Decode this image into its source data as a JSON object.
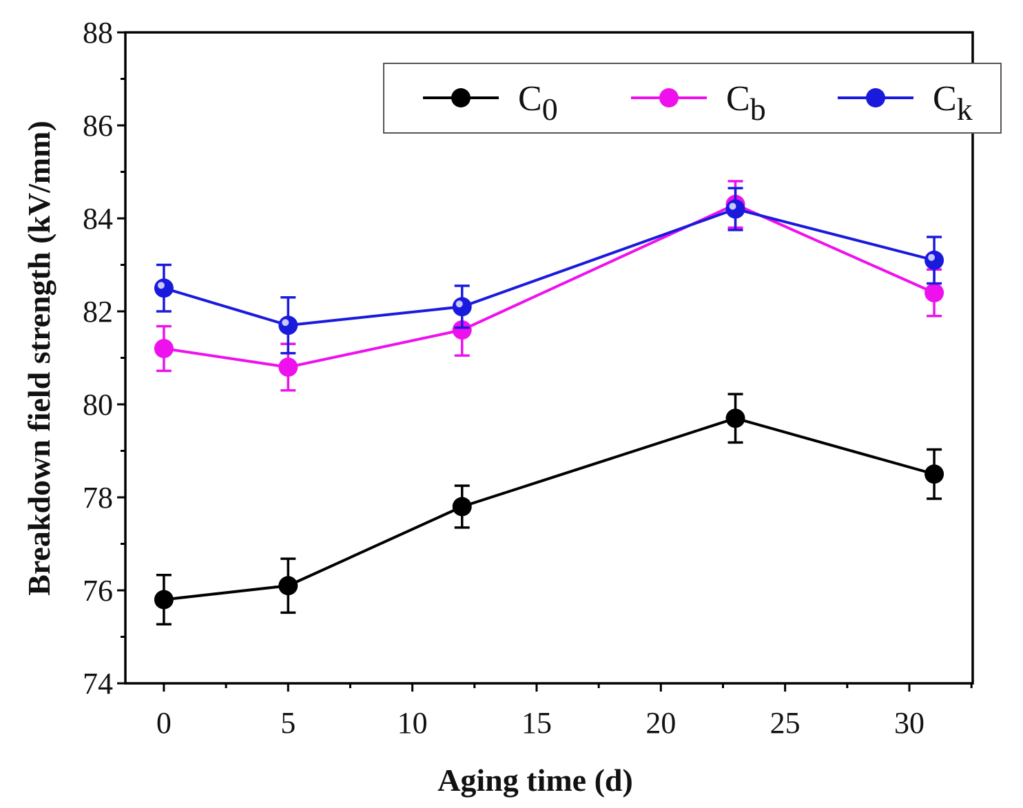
{
  "chart_data": {
    "type": "line",
    "title": "",
    "xlabel": "Aging time (d)",
    "ylabel": "Breakdown field strength (kV/mm)",
    "xlim": [
      -1.55,
      32.55
    ],
    "ylim": [
      74,
      88
    ],
    "xticks": [
      0,
      5,
      10,
      15,
      20,
      25,
      30
    ],
    "yticks": [
      74,
      76,
      78,
      80,
      82,
      84,
      86,
      88
    ],
    "grid": false,
    "legend_position": "top-right",
    "x": [
      0,
      5,
      12,
      23,
      31
    ],
    "series": [
      {
        "name": "C",
        "subscript": "0",
        "color": "#000000",
        "values": [
          75.8,
          76.1,
          77.8,
          79.7,
          78.5
        ],
        "errors": [
          0.53,
          0.58,
          0.45,
          0.52,
          0.53
        ]
      },
      {
        "name": "C",
        "subscript": "b",
        "color": "#ee11ee",
        "values": [
          81.2,
          80.8,
          81.6,
          84.3,
          82.4
        ],
        "errors": [
          0.48,
          0.5,
          0.55,
          0.5,
          0.5
        ]
      },
      {
        "name": "C",
        "subscript": "k",
        "color": "#1a1add",
        "values": [
          82.5,
          81.7,
          82.1,
          84.2,
          83.1
        ],
        "errors": [
          0.5,
          0.6,
          0.45,
          0.45,
          0.5
        ]
      }
    ]
  }
}
